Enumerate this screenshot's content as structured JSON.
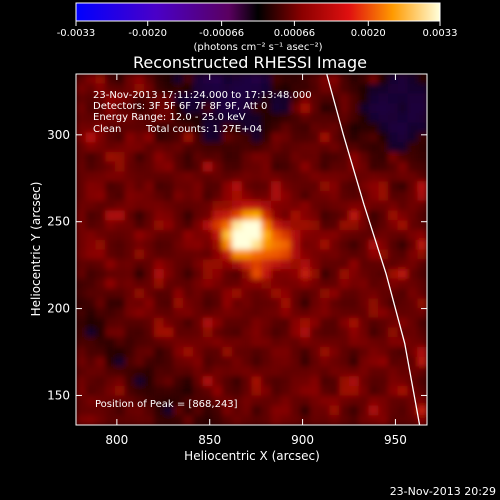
{
  "chart_data": {
    "type": "heatmap",
    "title": "Reconstructed RHESSI Image",
    "xlabel": "Heliocentric X (arcsec)",
    "ylabel": "Heliocentric Y (arcsec)",
    "xlim": [
      778,
      967
    ],
    "ylim": [
      133,
      335
    ],
    "xticks": [
      800,
      850,
      900,
      950
    ],
    "yticks": [
      150,
      200,
      250,
      300
    ],
    "colorbar": {
      "label": "(photons cm⁻² s⁻¹ asec⁻²)",
      "range": [
        -0.0033,
        0.0033
      ],
      "ticks": [
        "-0.0033",
        "-0.0020",
        "-0.00066",
        "0.00066",
        "0.0020",
        "0.0033"
      ],
      "tick_values": [
        -0.0033,
        -0.002,
        -0.00066,
        0.00066,
        0.002,
        0.0033
      ]
    },
    "peak": {
      "x": 868,
      "y": 243
    },
    "annotations": {
      "time_range": "23-Nov-2013 17:11:24.000 to 17:13:48.000",
      "detectors": "Detectors: 3F 5F 6F 7F 8F 9F, Att 0",
      "energy": "Energy Range: 12.0 - 25.0 keV",
      "clean_label": "Clean",
      "total_counts": "Total counts: 1.27E+04",
      "peak_text": "Position of Peak = [868,243]"
    },
    "limb_curve": [
      [
        913,
        335
      ],
      [
        922,
        300
      ],
      [
        933,
        260
      ],
      [
        945,
        220
      ],
      [
        955,
        180
      ],
      [
        963,
        133
      ]
    ],
    "colors": {
      "background": "#000000",
      "foreground": "#ffffff",
      "limb": "#ffffff"
    }
  },
  "footer_timestamp": "23-Nov-2013 20:29"
}
